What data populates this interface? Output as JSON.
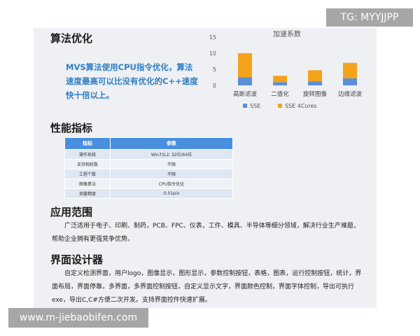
{
  "sections": {
    "algo": {
      "title": "算法优化",
      "desc": "MVS算法使用CPU指令优化，算法速度最高可以比没有优化的C++速度快十倍以上。"
    },
    "perf": {
      "title": "性能指标",
      "headers": [
        "指标",
        "参数"
      ],
      "rows": [
        [
          "操作系统",
          "Win7以上 32位/64位"
        ],
        [
          "支持相机数",
          "不限"
        ],
        [
          "工程个数",
          "不限"
        ],
        [
          "图像算法",
          "CPU指令优化"
        ],
        [
          "测量精度",
          "0.01pix"
        ]
      ]
    },
    "scope": {
      "title": "应用范围",
      "text": "广泛适用于电子、印刷、制药，PCB、FPC、仪表，工件、模具、半导体等细分领域，解决行业生产难题，帮助企业拥有更强竞争优势。"
    },
    "ui": {
      "title": "界面设计器",
      "text": "自定义检测界面，用户logo，图像显示，图形显示，参数控制按钮，表格，图表，运行控制按钮，统计，界面布局，界面停靠，多界面，多界面控制按钮，自定义显示文字，界面颜色控制，界面字体控制，导出可执行exe，导出C,C#方便二次开发。支持界面控件快速扩展。"
    }
  },
  "watermarks": {
    "top": "TG: MYYJJPP",
    "bottom": "www.m-jiebaobifen.com"
  },
  "chart_data": {
    "type": "bar",
    "stacked": true,
    "title": "加速系数",
    "categories": [
      "高斯滤波",
      "二值化",
      "旋转图像",
      "边缘滤波"
    ],
    "series": [
      {
        "name": "SSE",
        "values": [
          2.5,
          1,
          1.2,
          2.2
        ],
        "color": "#5b8fd6"
      },
      {
        "name": "SSE 4Cores",
        "values": [
          7.5,
          2,
          3.5,
          4.8
        ],
        "color": "#f5a21b"
      }
    ],
    "ylim": [
      0,
      15
    ],
    "yticks": [
      0,
      5,
      10,
      15
    ],
    "legend": "bottom",
    "grid": false
  }
}
